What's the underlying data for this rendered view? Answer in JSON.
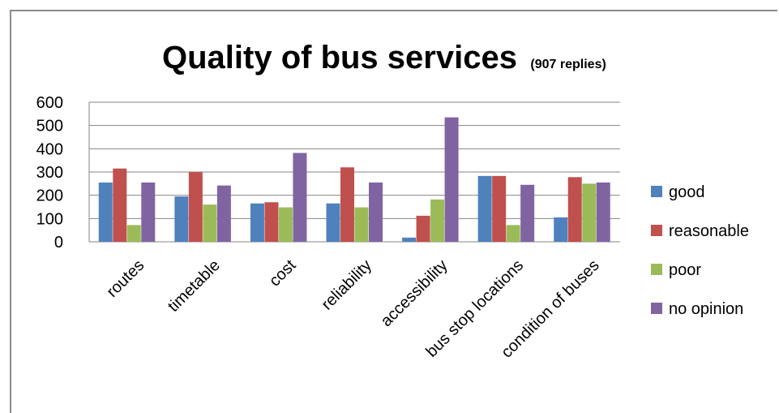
{
  "chart_data": {
    "type": "bar",
    "title": "Quality of bus services",
    "subtitle": "(907 replies)",
    "xlabel": "",
    "ylabel": "",
    "ylim": [
      0,
      600
    ],
    "yticks": [
      0,
      100,
      200,
      300,
      400,
      500,
      600
    ],
    "grid": true,
    "legend_position": "right",
    "categories": [
      "routes",
      "timetable",
      "cost",
      "reliability",
      "accessibility",
      "bus stop locations",
      "condition of buses"
    ],
    "series": [
      {
        "name": "good",
        "color": "#4f81bd",
        "values": [
          255,
          195,
          165,
          165,
          18,
          283,
          105
        ]
      },
      {
        "name": "reasonable",
        "color": "#c0504d",
        "values": [
          315,
          300,
          170,
          320,
          112,
          283,
          278
        ]
      },
      {
        "name": "poor",
        "color": "#9bbb59",
        "values": [
          72,
          160,
          148,
          148,
          182,
          72,
          250
        ]
      },
      {
        "name": "no opinion",
        "color": "#8064a2",
        "values": [
          255,
          242,
          382,
          255,
          535,
          245,
          255
        ]
      }
    ]
  }
}
